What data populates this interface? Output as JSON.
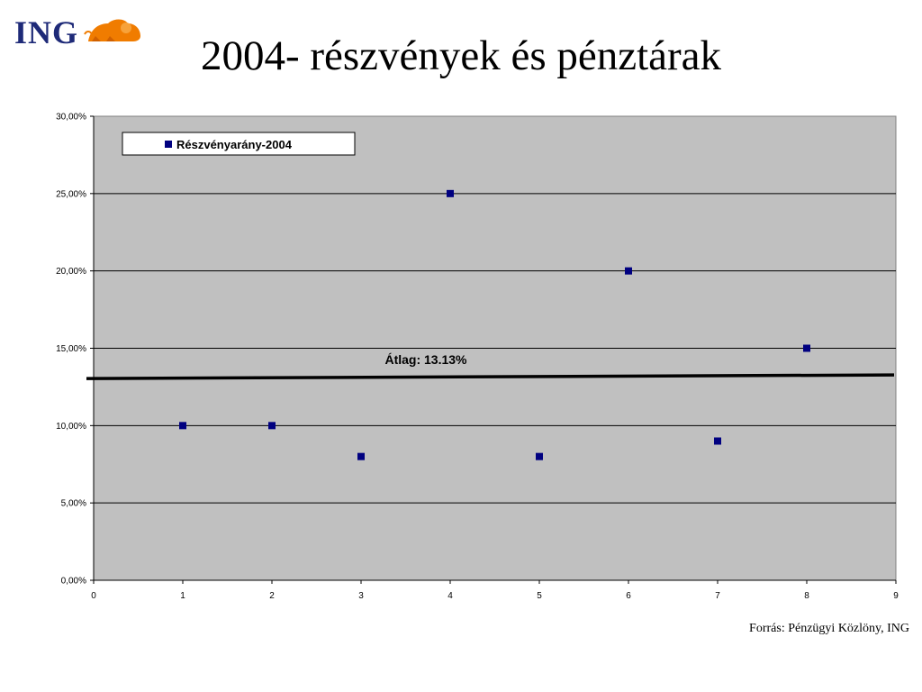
{
  "logo": {
    "text": "ING",
    "icon": "lion-icon",
    "text_color": "#1e2a78",
    "icon_color": "#f07c00"
  },
  "title": "2004- részvények és pénztárak",
  "source": "Forrás: Pénzügyi Közlöny, ING",
  "chart_data": {
    "type": "scatter",
    "title": "",
    "xlabel": "",
    "ylabel": "",
    "xlim": [
      0,
      9
    ],
    "ylim": [
      0,
      0.3
    ],
    "x_ticks": [
      "0",
      "1",
      "2",
      "3",
      "4",
      "5",
      "6",
      "7",
      "8",
      "9"
    ],
    "y_ticks": [
      "0,00%",
      "5,00%",
      "10,00%",
      "15,00%",
      "20,00%",
      "25,00%",
      "30,00%"
    ],
    "grid": true,
    "legend_position": "top-left",
    "plot_background": "#c0c0c0",
    "series": [
      {
        "name": "Részvényarány-2004",
        "color": "#000080",
        "marker": "square",
        "x": [
          1,
          2,
          3,
          4,
          5,
          6,
          7,
          8
        ],
        "y": [
          0.1,
          0.1,
          0.08,
          0.25,
          0.08,
          0.2,
          0.09,
          0.15
        ]
      }
    ],
    "average_line": {
      "value": 0.1313,
      "label": "Átlag: 13.13%",
      "color": "#000000"
    }
  }
}
